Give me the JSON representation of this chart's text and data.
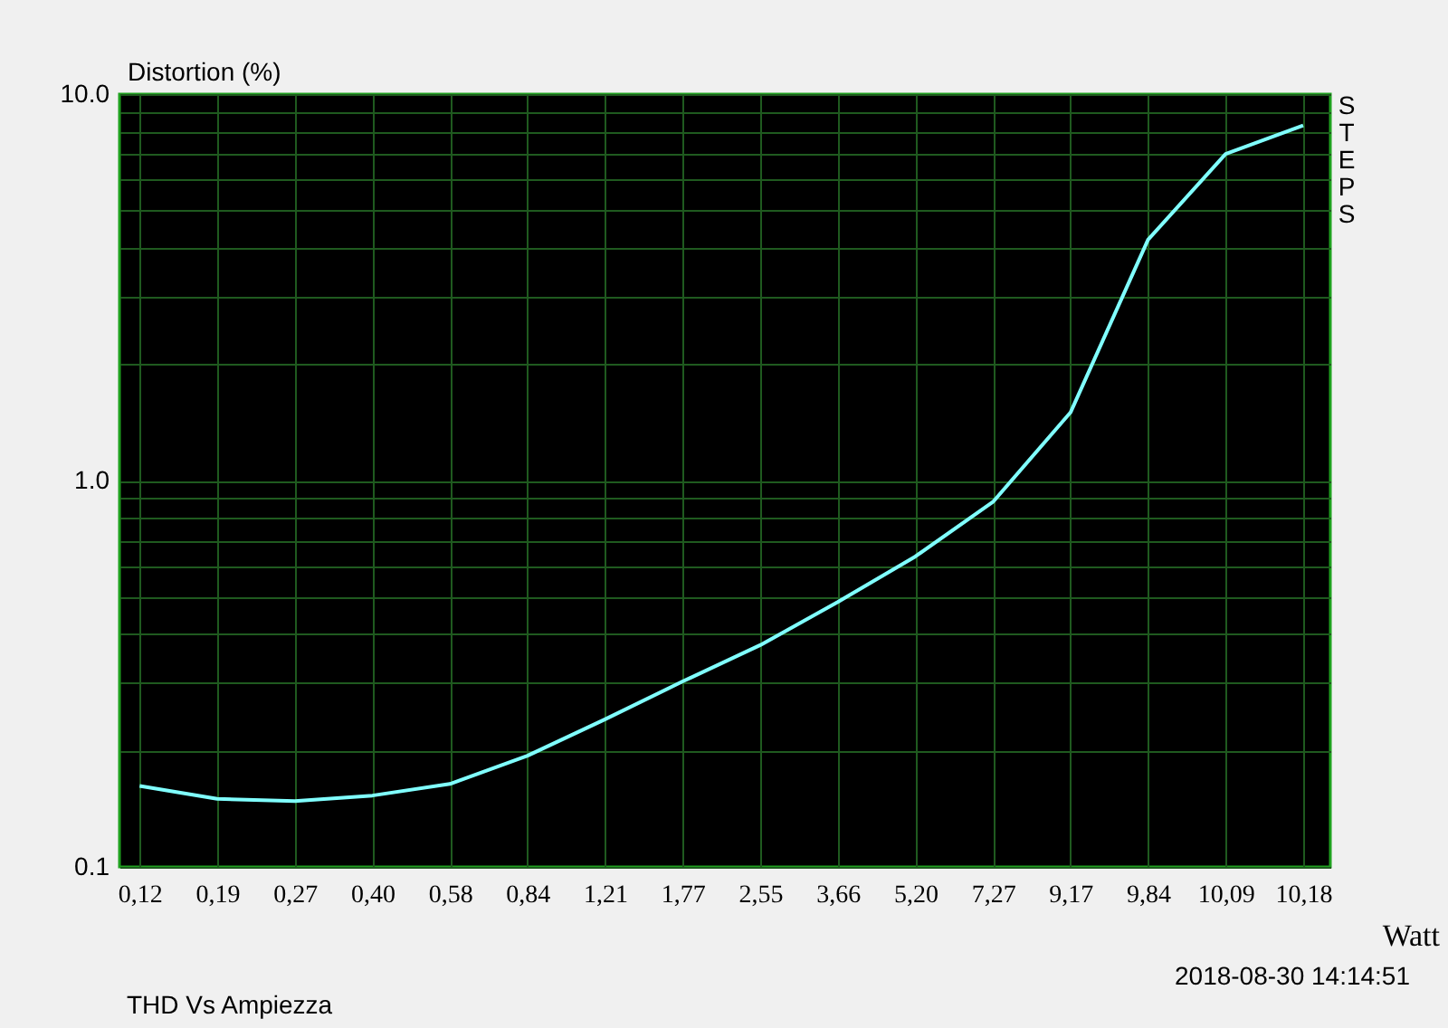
{
  "chart_data": {
    "type": "line",
    "ylabel": "Distortion (%)",
    "xlabel": "Watt",
    "categories": [
      "0,12",
      "0,19",
      "0,27",
      "0,40",
      "0,58",
      "0,84",
      "1,21",
      "1,77",
      "2,55",
      "3,66",
      "5,20",
      "7,27",
      "9,17",
      "9,84",
      "10,09",
      "10,18"
    ],
    "series": [
      {
        "color": "#80ffff",
        "values": [
          0.162,
          0.15,
          0.148,
          0.153,
          0.164,
          0.194,
          0.241,
          0.302,
          0.375,
          0.485,
          0.636,
          0.88,
          1.5,
          4.2,
          7.0,
          8.3
        ]
      }
    ],
    "log": "y",
    "ylim": [
      0.1,
      10
    ],
    "yticks": [
      {
        "value": 0.1,
        "label": "0.1"
      },
      {
        "value": 0.2,
        "label": null
      },
      {
        "value": 0.3,
        "label": null
      },
      {
        "value": 0.4,
        "label": null
      },
      {
        "value": 0.5,
        "label": null
      },
      {
        "value": 0.6,
        "label": null
      },
      {
        "value": 0.7,
        "label": null
      },
      {
        "value": 0.8,
        "label": null
      },
      {
        "value": 0.9,
        "label": null
      },
      {
        "value": 1,
        "label": "1.0"
      },
      {
        "value": 2,
        "label": null
      },
      {
        "value": 3,
        "label": null
      },
      {
        "value": 4,
        "label": null
      },
      {
        "value": 5,
        "label": null
      },
      {
        "value": 6,
        "label": null
      },
      {
        "value": 7,
        "label": null
      },
      {
        "value": 8,
        "label": null
      },
      {
        "value": 9,
        "label": null
      },
      {
        "value": 10,
        "label": "10.0"
      }
    ],
    "grid": true,
    "legend": false,
    "marker": "none",
    "line_style": "solid",
    "annotations": [
      "STEPS",
      "2018-08-30  14:14:51",
      "THD Vs Ampiezza"
    ]
  }
}
